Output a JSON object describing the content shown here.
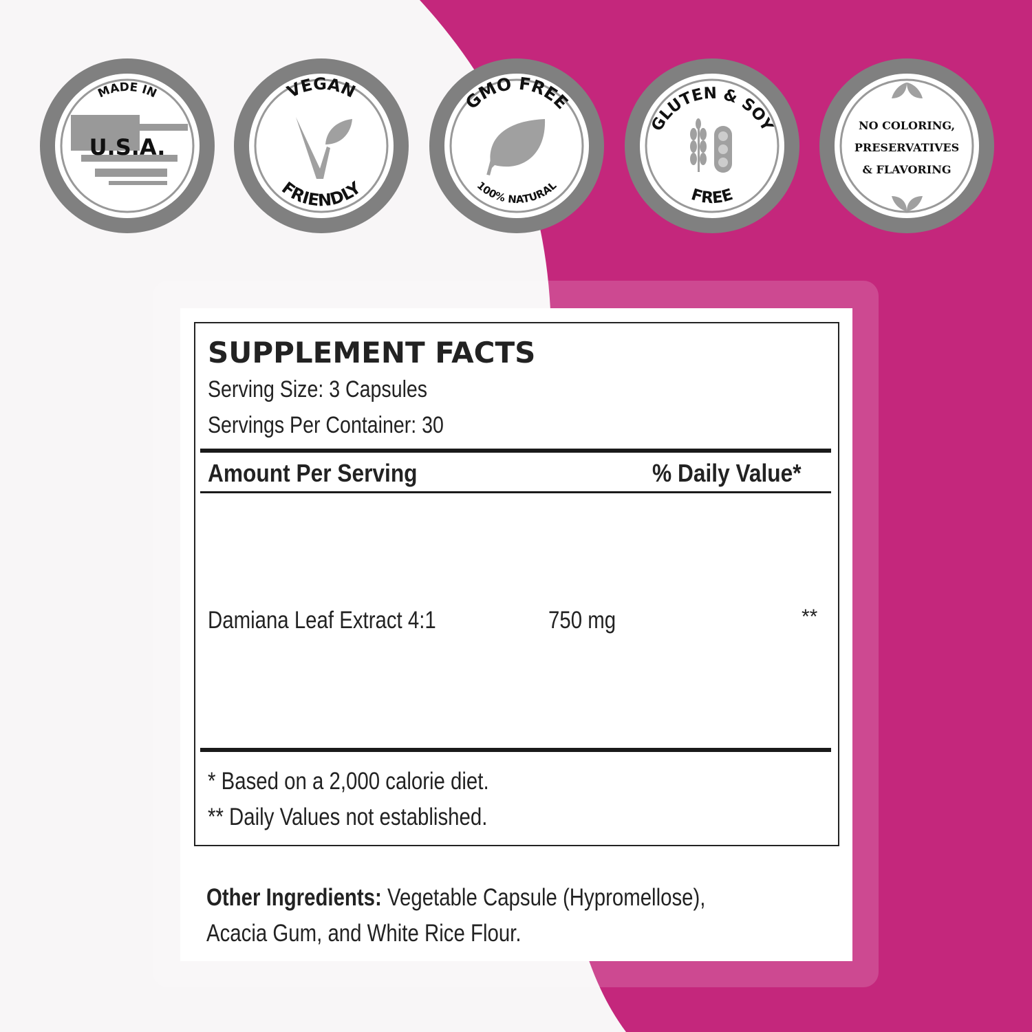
{
  "colors": {
    "background": "#f8f6f7",
    "accent": "#c4277c",
    "badge_ring": "#808080"
  },
  "badges": [
    {
      "top": "MADE IN",
      "center": "U.S.A.",
      "icon": "usa-flag-map-icon"
    },
    {
      "top": "VEGAN",
      "bottom": "FRIENDLY",
      "icon": "vegan-leaf-icon"
    },
    {
      "top": "GMO FREE",
      "bottom": "100% NATURAL",
      "icon": "leaf-icon"
    },
    {
      "top": "GLUTEN & SOY",
      "bottom": "FREE",
      "icon": "wheat-soy-icon"
    },
    {
      "lines": [
        "NO COLORING,",
        "PRESERVATIVES",
        "& FLAVORING"
      ],
      "icon": "leaves-icon"
    }
  ],
  "facts": {
    "title": "SUPPLEMENT FACTS",
    "serving_size": "Serving Size: 3 Capsules",
    "servings_per_container": "Servings Per Container: 30",
    "header_amount": "Amount Per Serving",
    "header_dv": "% Daily Value*",
    "rows": [
      {
        "name": "Damiana Leaf Extract 4:1",
        "amount": "750 mg",
        "dv": "**"
      }
    ],
    "footnote1": "* Based on a 2,000 calorie diet.",
    "footnote2": "** Daily Values not established."
  },
  "other_ingredients": {
    "label": "Other Ingredients:",
    "line1": " Vegetable Capsule (Hypromellose),",
    "line2": "Acacia Gum, and White Rice Flour."
  }
}
